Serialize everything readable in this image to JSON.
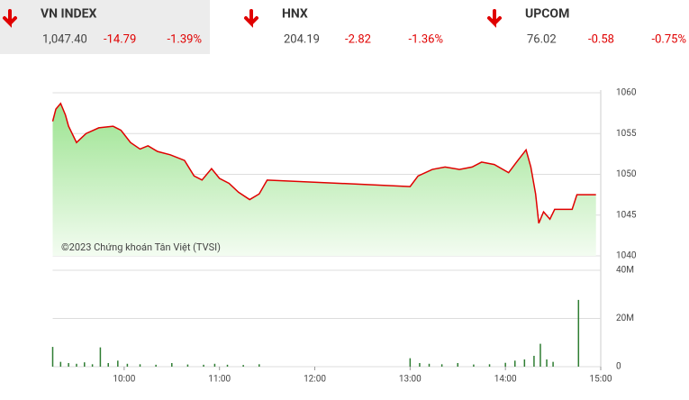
{
  "header": {
    "tickers": [
      {
        "name": "VN INDEX",
        "value": "1,047.40",
        "change": "-14.79",
        "percent": "-1.39%"
      },
      {
        "name": "HNX",
        "value": "204.19",
        "change": "-2.82",
        "percent": "-1.36%"
      },
      {
        "name": "UPCOM",
        "value": "76.02",
        "change": "-0.58",
        "percent": "-0.75%"
      }
    ]
  },
  "copyright": "©2023 Chứng khoán Tân Việt (TVSI)",
  "chart_data": [
    {
      "type": "line",
      "xlim": [
        555,
        900
      ],
      "ylim": [
        1040,
        1060
      ],
      "yticks": [
        1040,
        1045,
        1050,
        1055,
        1060
      ],
      "grid": true,
      "x": [
        555,
        557,
        560,
        563,
        565,
        570,
        576,
        584,
        593,
        598,
        604,
        610,
        615,
        621,
        629,
        638,
        644,
        649,
        655,
        660,
        666,
        672,
        679,
        685,
        690,
        780,
        785,
        794,
        802,
        811,
        819,
        825,
        833,
        842,
        847,
        853,
        856,
        859,
        861,
        864,
        868,
        871,
        882,
        885,
        897
      ],
      "series": [
        {
          "name": "VN INDEX",
          "color": "#e00000",
          "values": [
            1056.5,
            1058,
            1058.7,
            1057.3,
            1055.9,
            1053.9,
            1055,
            1055.7,
            1055.9,
            1055.4,
            1053.9,
            1053.1,
            1053.5,
            1052.8,
            1052.4,
            1051.7,
            1049.8,
            1049.3,
            1050.7,
            1049.5,
            1048.9,
            1047.8,
            1046.9,
            1047.6,
            1049.3,
            1048.5,
            1049.8,
            1050.6,
            1050.9,
            1050.6,
            1050.9,
            1051.5,
            1051.2,
            1050.2,
            1051.5,
            1053,
            1050.9,
            1047.6,
            1044,
            1045.4,
            1044.5,
            1045.7,
            1045.7,
            1047.5,
            1047.5
          ]
        }
      ]
    },
    {
      "type": "bar",
      "xlim": [
        555,
        900
      ],
      "ylim": [
        0,
        40
      ],
      "yticks": [
        {
          "value": 0,
          "label": "0"
        },
        {
          "value": 20,
          "label": "20M"
        },
        {
          "value": 40,
          "label": "40M"
        }
      ],
      "grid": true,
      "xticks": [
        {
          "value": 600,
          "label": "10:00"
        },
        {
          "value": 660,
          "label": "11:00"
        },
        {
          "value": 720,
          "label": "12:00"
        },
        {
          "value": 780,
          "label": "13:00"
        },
        {
          "value": 840,
          "label": "14:00"
        },
        {
          "value": 900,
          "label": "15:00"
        }
      ],
      "x": [
        555,
        560,
        565,
        570,
        575,
        580,
        585,
        590,
        596,
        602,
        610,
        620,
        630,
        640,
        650,
        657,
        665,
        675,
        685,
        780,
        786,
        792,
        800,
        810,
        820,
        830,
        840,
        846,
        852,
        858,
        862,
        866,
        870,
        886
      ],
      "series": [
        {
          "name": "Volume",
          "color": "#2e7d32",
          "values": [
            8.2,
            2,
            1.5,
            1.2,
            1.8,
            1,
            8,
            1.5,
            2.5,
            1.2,
            1,
            0.8,
            1.5,
            0.9,
            0.8,
            1.2,
            0.8,
            0.7,
            1,
            3.5,
            1.5,
            1.2,
            1,
            1.5,
            0.9,
            1,
            1.6,
            2.5,
            3,
            4.5,
            9.5,
            3,
            2,
            27.7
          ]
        }
      ]
    }
  ]
}
